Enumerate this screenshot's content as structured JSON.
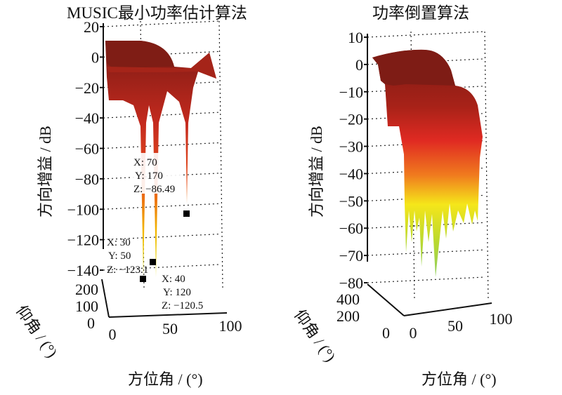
{
  "chart_data": [
    {
      "type": "surface",
      "title": "MUSIC最小功率估计算法",
      "xlabel": "方位角 / (°)",
      "ylabel": "仰角 / (°)",
      "zlabel": "方向增益 / dB",
      "xlim": [
        0,
        100
      ],
      "ylim": [
        0,
        200
      ],
      "zlim": [
        -140,
        20
      ],
      "xticks": [
        "0",
        "50",
        "100"
      ],
      "yticks": [
        "0",
        "100",
        "200"
      ],
      "zticks": [
        "20",
        "0",
        "−20",
        "−40",
        "−60",
        "−80",
        "−100",
        "−120",
        "−140"
      ],
      "grid": true,
      "colormap": "jet-like (red high, yellow/green low)",
      "datatips": [
        {
          "X": "70",
          "Y": "170",
          "Z": "−86.49"
        },
        {
          "X": "30",
          "Y": "50",
          "Z": "−123.1"
        },
        {
          "X": "40",
          "Y": "120",
          "Z": "−120.5"
        }
      ]
    },
    {
      "type": "surface",
      "title": "功率倒置算法",
      "xlabel": "方位角 / (°)",
      "ylabel": "仰角 / (°)",
      "zlabel": "方向增益 / dB",
      "xlim": [
        0,
        100
      ],
      "ylim": [
        0,
        400
      ],
      "zlim": [
        -80,
        10
      ],
      "xticks": [
        "0",
        "50",
        "100"
      ],
      "yticks": [
        "0",
        "200",
        "400"
      ],
      "zticks": [
        "10",
        "0",
        "−10",
        "−20",
        "−30",
        "−40",
        "−50",
        "−60",
        "−70",
        "−80"
      ],
      "grid": true,
      "colormap": "jet-like (red high, yellow/green low)",
      "datatips": []
    }
  ]
}
